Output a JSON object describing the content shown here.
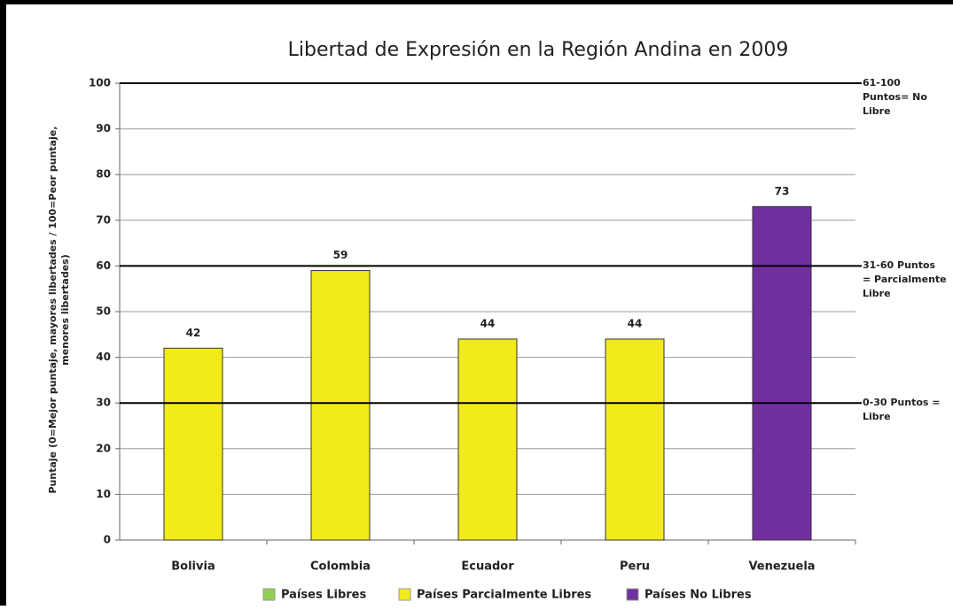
{
  "chart_data": {
    "type": "bar",
    "title": "Libertad de Expresión en la Región Andina en 2009",
    "y_label": "Puntaje (0=Mejor puntaje, mayores libertades / 100=Peor puntaje, menores libertades)",
    "categories": [
      "Bolivia",
      "Colombia",
      "Ecuador",
      "Peru",
      "Venezuela"
    ],
    "values": [
      42,
      59,
      44,
      44,
      73
    ],
    "colors": [
      "#f2ea1a",
      "#f2ea1a",
      "#f2ea1a",
      "#f2ea1a",
      "#7030a0"
    ],
    "ylim": [
      0,
      100
    ],
    "yticks": [
      0,
      10,
      20,
      30,
      40,
      50,
      60,
      70,
      80,
      90,
      100
    ],
    "grid": true,
    "reference_lines": [
      {
        "value": 100,
        "label": "61-100 Puntos= No Libre"
      },
      {
        "value": 60,
        "label": "31-60 Puntos = Parcialmente Libre"
      },
      {
        "value": 30,
        "label": "0-30 Puntos = Libre"
      }
    ],
    "legend": [
      {
        "name": "Países Libres",
        "color": "#92d050"
      },
      {
        "name": "Países Parcialmente Libres",
        "color": "#f2ea1a"
      },
      {
        "name": "Países No Libres",
        "color": "#7030a0"
      }
    ]
  }
}
